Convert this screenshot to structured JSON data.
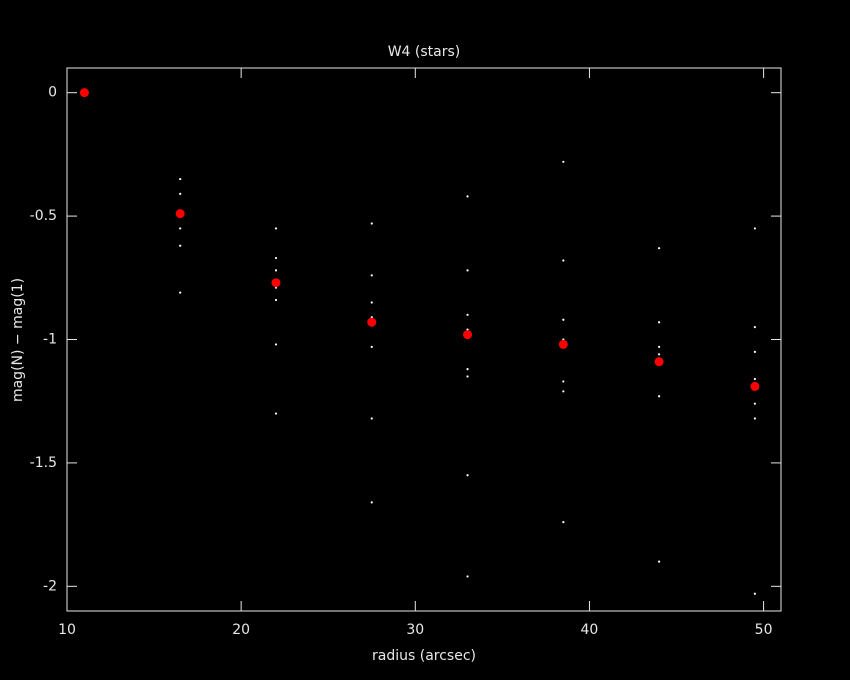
{
  "chart_data": {
    "type": "scatter",
    "title": "W4 (stars)",
    "x_label": "radius (arcsec)",
    "y_label": "mag(N) − mag(1)",
    "xlim": [
      10,
      51
    ],
    "ylim": [
      -2.1,
      0.1
    ],
    "xticks": [
      10,
      20,
      30,
      40,
      50
    ],
    "yticks": [
      0,
      -0.5,
      -1,
      -1.5,
      -2
    ],
    "series": [
      {
        "color": "#ffffff",
        "marker": "dot",
        "x": [
          16.5,
          16.5,
          16.5,
          16.5,
          16.5,
          16.5,
          22,
          22,
          22,
          22,
          22,
          22,
          22,
          27.5,
          27.5,
          27.5,
          27.5,
          27.5,
          27.5,
          27.5,
          33,
          33,
          33,
          33,
          33,
          33,
          33,
          33,
          38.5,
          38.5,
          38.5,
          38.5,
          38.5,
          38.5,
          38.5,
          44,
          44,
          44,
          44,
          44,
          44,
          49.5,
          49.5,
          49.5,
          49.5,
          49.5,
          49.5,
          49.5
        ],
        "y": [
          -0.35,
          -0.41,
          -0.48,
          -0.55,
          -0.62,
          -0.81,
          -0.55,
          -0.67,
          -0.72,
          -0.79,
          -0.84,
          -1.02,
          -1.3,
          -0.53,
          -0.74,
          -0.85,
          -0.91,
          -1.03,
          -1.32,
          -1.66,
          -0.42,
          -0.72,
          -0.9,
          -0.96,
          -1.12,
          -1.15,
          -1.55,
          -1.96,
          -0.28,
          -0.68,
          -0.92,
          -1.0,
          -1.17,
          -1.21,
          -1.74,
          -0.63,
          -0.93,
          -1.03,
          -1.06,
          -1.23,
          -1.9,
          -0.55,
          -0.95,
          -1.05,
          -1.16,
          -1.26,
          -1.32,
          -2.03
        ]
      },
      {
        "color": "#ff0000",
        "marker": "circle",
        "x": [
          11,
          16.5,
          22,
          27.5,
          33,
          38.5,
          44,
          49.5
        ],
        "y": [
          0,
          -0.49,
          -0.77,
          -0.93,
          -0.98,
          -1.02,
          -1.09,
          -1.19
        ]
      }
    ]
  }
}
